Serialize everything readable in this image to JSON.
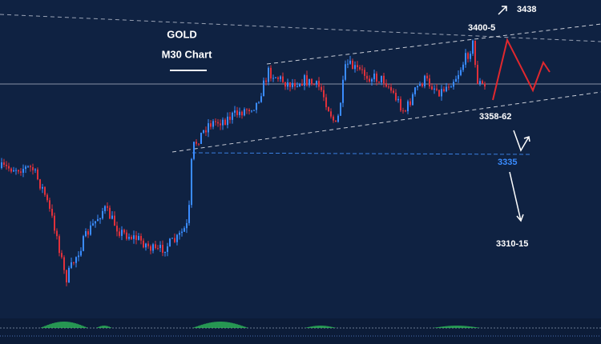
{
  "header": {
    "title": "GOLD",
    "subtitle": "M30 Chart"
  },
  "levels": [
    {
      "label": "3438"
    },
    {
      "label": "3400-5"
    },
    {
      "label": "3358-62"
    },
    {
      "label": "3335"
    },
    {
      "label": "3310-15"
    }
  ]
}
